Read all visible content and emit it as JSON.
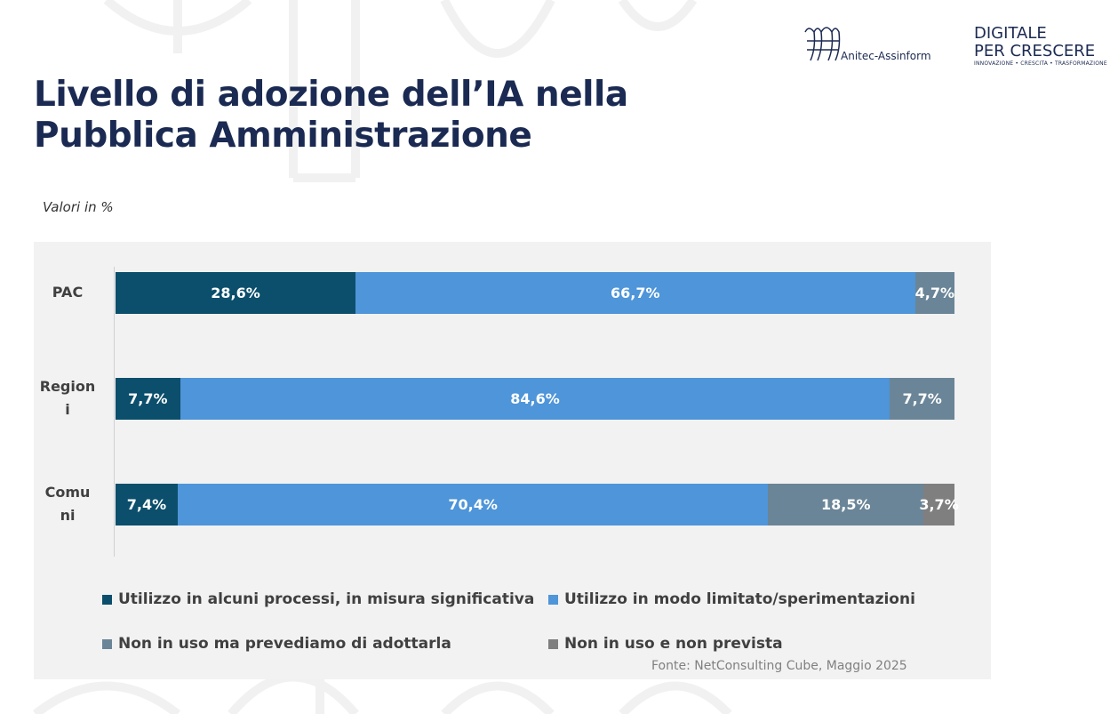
{
  "header": {
    "title_line1": "Livello di adozione dell’IA nella",
    "title_line2": "Pubblica Amministrazione",
    "subtitle": "Valori in %"
  },
  "logos": {
    "anitec": "Anitec-Assinform",
    "digitale_line1": "DIGITALE",
    "digitale_line2": "PER CRESCERE",
    "digitale_tagline": "INNOVAZIONE • CRESCITA • TRASFORMAZIONE"
  },
  "source": "Fonte: NetConsulting Cube, Maggio 2025",
  "chart_data": {
    "type": "bar",
    "orientation": "horizontal",
    "stacked": true,
    "categories": [
      "PAC",
      "Region i",
      "Comu ni"
    ],
    "category_lines": [
      [
        "PAC"
      ],
      [
        "Region",
        "i"
      ],
      [
        "Comu",
        "ni"
      ]
    ],
    "series": [
      {
        "name": "Utilizzo in alcuni processi, in misura significativa",
        "color": "#0b4f6c",
        "values": [
          28.6,
          7.7,
          7.4
        ],
        "labels": [
          "28,6%",
          "7,7%",
          "7,4%"
        ]
      },
      {
        "name": "Utilizzo in modo limitato/sperimentazioni",
        "color": "#4e95d9",
        "values": [
          66.7,
          84.6,
          70.4
        ],
        "labels": [
          "66,7%",
          "84,6%",
          "70,4%"
        ]
      },
      {
        "name": "Non in uso ma prevediamo di adottarla",
        "color": "#6a8597",
        "values": [
          4.7,
          7.7,
          18.5
        ],
        "labels": [
          "4,7%",
          "7,7%",
          "18,5%"
        ]
      },
      {
        "name": "Non in uso e non prevista",
        "color": "#7f7f7f",
        "values": [
          0,
          0,
          3.7
        ],
        "labels": [
          "",
          "",
          "3,7%"
        ]
      }
    ],
    "xlim": [
      0,
      100
    ],
    "grid": false,
    "legend": "bottom"
  }
}
